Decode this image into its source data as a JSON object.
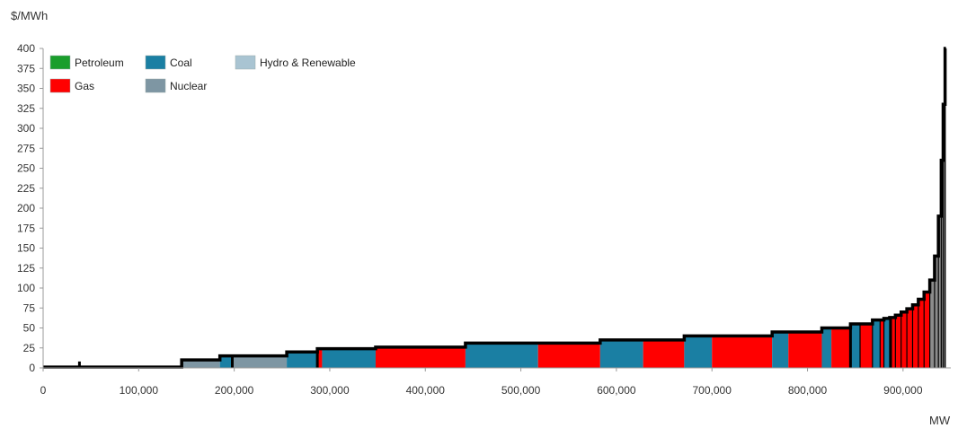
{
  "chart_data": {
    "type": "area",
    "title": "",
    "ylabel": "$/MWh",
    "xlabel": "MW",
    "xlim": [
      0,
      950000
    ],
    "ylim": [
      0,
      400
    ],
    "x_ticks": [
      0,
      100000,
      200000,
      300000,
      400000,
      500000,
      600000,
      700000,
      800000,
      900000
    ],
    "x_tick_labels": [
      "0",
      "100,000",
      "200,000",
      "300,000",
      "400,000",
      "500,000",
      "600,000",
      "700,000",
      "800,000",
      "900,000"
    ],
    "y_ticks": [
      0,
      25,
      50,
      75,
      100,
      125,
      150,
      175,
      200,
      225,
      250,
      275,
      300,
      325,
      350,
      375,
      400
    ],
    "y_tick_labels": [
      "0",
      "25",
      "50",
      "75",
      "100",
      "125",
      "150",
      "175",
      "200",
      "225",
      "250",
      "275",
      "300",
      "325",
      "350",
      "375",
      "400"
    ],
    "grid": false,
    "legend_position": "top-left",
    "legend": [
      {
        "name": "Petroleum",
        "color": "#1a9e2c"
      },
      {
        "name": "Gas",
        "color": "#ff0000"
      },
      {
        "name": "Coal",
        "color": "#1a7fa3"
      },
      {
        "name": "Nuclear",
        "color": "#7e96a3"
      },
      {
        "name": "Hydro & Renewable",
        "color": "#a9c4d2"
      }
    ],
    "colors": {
      "Petroleum": "#1a9e2c",
      "Gas": "#ff0000",
      "Coal": "#1a7fa3",
      "Nuclear": "#7e96a3",
      "Hydro & Renewable": "#a9c4d2",
      "Other": "#8c8c8c",
      "curve": "#000000"
    },
    "segments": [
      {
        "x0": 0,
        "x1": 145000,
        "y": 1,
        "fuel": "Hydro & Renewable"
      },
      {
        "x0": 145000,
        "x1": 150000,
        "y": 10,
        "fuel": "Nuclear"
      },
      {
        "x0": 150000,
        "x1": 185000,
        "y": 10,
        "fuel": "Nuclear"
      },
      {
        "x0": 185000,
        "x1": 198000,
        "y": 15,
        "fuel": "Coal"
      },
      {
        "x0": 198000,
        "x1": 255000,
        "y": 15,
        "fuel": "Nuclear"
      },
      {
        "x0": 255000,
        "x1": 287000,
        "y": 20,
        "fuel": "Coal"
      },
      {
        "x0": 287000,
        "x1": 292000,
        "y": 24,
        "fuel": "Gas"
      },
      {
        "x0": 292000,
        "x1": 348000,
        "y": 24,
        "fuel": "Coal"
      },
      {
        "x0": 348000,
        "x1": 442000,
        "y": 26,
        "fuel": "Gas"
      },
      {
        "x0": 442000,
        "x1": 518000,
        "y": 31,
        "fuel": "Coal"
      },
      {
        "x0": 518000,
        "x1": 583000,
        "y": 31,
        "fuel": "Gas"
      },
      {
        "x0": 583000,
        "x1": 628000,
        "y": 35,
        "fuel": "Coal"
      },
      {
        "x0": 628000,
        "x1": 671000,
        "y": 35,
        "fuel": "Gas"
      },
      {
        "x0": 671000,
        "x1": 700000,
        "y": 40,
        "fuel": "Coal"
      },
      {
        "x0": 700000,
        "x1": 763000,
        "y": 40,
        "fuel": "Gas"
      },
      {
        "x0": 763000,
        "x1": 780000,
        "y": 45,
        "fuel": "Coal"
      },
      {
        "x0": 780000,
        "x1": 815000,
        "y": 45,
        "fuel": "Gas"
      },
      {
        "x0": 815000,
        "x1": 825000,
        "y": 50,
        "fuel": "Coal"
      },
      {
        "x0": 825000,
        "x1": 845000,
        "y": 50,
        "fuel": "Gas"
      },
      {
        "x0": 845000,
        "x1": 855000,
        "y": 55,
        "fuel": "Coal"
      },
      {
        "x0": 855000,
        "x1": 868000,
        "y": 55,
        "fuel": "Gas"
      },
      {
        "x0": 868000,
        "x1": 876000,
        "y": 60,
        "fuel": "Coal"
      },
      {
        "x0": 876000,
        "x1": 880000,
        "y": 60,
        "fuel": "Gas"
      },
      {
        "x0": 880000,
        "x1": 886000,
        "y": 62,
        "fuel": "Coal"
      },
      {
        "x0": 886000,
        "x1": 892000,
        "y": 63,
        "fuel": "Gas"
      },
      {
        "x0": 892000,
        "x1": 898000,
        "y": 66,
        "fuel": "Gas"
      },
      {
        "x0": 898000,
        "x1": 904000,
        "y": 70,
        "fuel": "Gas"
      },
      {
        "x0": 904000,
        "x1": 910000,
        "y": 74,
        "fuel": "Gas"
      },
      {
        "x0": 910000,
        "x1": 916000,
        "y": 79,
        "fuel": "Gas"
      },
      {
        "x0": 916000,
        "x1": 922000,
        "y": 86,
        "fuel": "Gas"
      },
      {
        "x0": 922000,
        "x1": 928000,
        "y": 95,
        "fuel": "Gas"
      },
      {
        "x0": 928000,
        "x1": 933000,
        "y": 110,
        "fuel": "Other"
      },
      {
        "x0": 933000,
        "x1": 937000,
        "y": 140,
        "fuel": "Other"
      },
      {
        "x0": 937000,
        "x1": 940000,
        "y": 190,
        "fuel": "Other"
      },
      {
        "x0": 940000,
        "x1": 942000,
        "y": 260,
        "fuel": "Other"
      },
      {
        "x0": 942000,
        "x1": 944000,
        "y": 330,
        "fuel": "Other"
      },
      {
        "x0": 944000,
        "x1": 945000,
        "y": 400,
        "fuel": "Other"
      }
    ],
    "spikes": [
      {
        "x": 38000,
        "y": 8
      }
    ]
  }
}
